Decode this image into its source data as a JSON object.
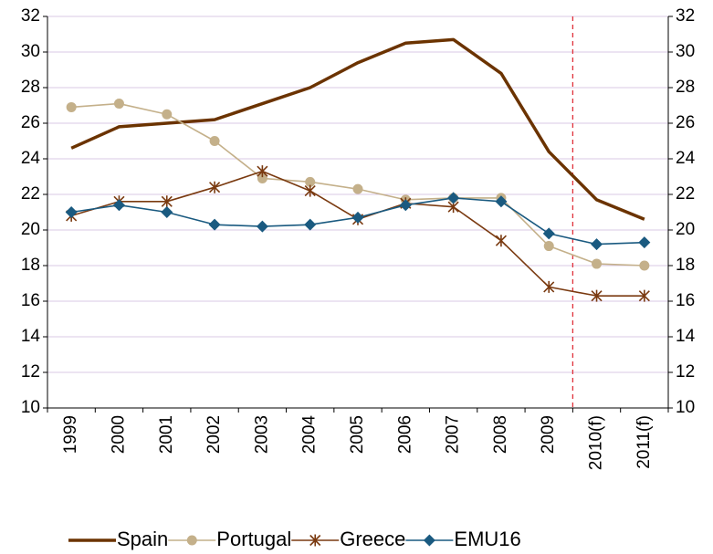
{
  "chart_data": {
    "type": "line",
    "categories": [
      "1999",
      "2000",
      "2001",
      "2002",
      "2003",
      "2004",
      "2005",
      "2006",
      "2007",
      "2008",
      "2009",
      "2010(f)",
      "2011(f)"
    ],
    "series": [
      {
        "name": "Spain",
        "color": "#6b3300",
        "marker": "none",
        "values": [
          24.6,
          25.8,
          26.0,
          26.2,
          27.1,
          28.0,
          29.4,
          30.5,
          30.7,
          28.8,
          24.4,
          21.7,
          20.6
        ]
      },
      {
        "name": "Portugal",
        "color": "#c4b08a",
        "marker": "circle",
        "values": [
          26.9,
          27.1,
          26.5,
          25.0,
          22.9,
          22.7,
          22.3,
          21.7,
          21.8,
          21.8,
          19.1,
          18.1,
          18.0
        ]
      },
      {
        "name": "Greece",
        "color": "#7a3a10",
        "marker": "star",
        "values": [
          20.8,
          21.6,
          21.6,
          22.4,
          23.3,
          22.2,
          20.6,
          21.5,
          21.3,
          19.4,
          16.8,
          16.3,
          16.3
        ]
      },
      {
        "name": "EMU16",
        "color": "#1a5a80",
        "marker": "diamond",
        "values": [
          21.0,
          21.4,
          21.0,
          20.3,
          20.2,
          20.3,
          20.7,
          21.4,
          21.8,
          21.6,
          19.8,
          19.2,
          19.3
        ]
      }
    ],
    "ylim": [
      10,
      32
    ],
    "yticks": [
      10,
      12,
      14,
      16,
      18,
      20,
      22,
      24,
      26,
      28,
      30,
      32
    ],
    "y2lim": [
      10,
      32
    ],
    "y2ticks": [
      10,
      12,
      14,
      16,
      18,
      20,
      22,
      24,
      26,
      28,
      30,
      32
    ],
    "grid": true
  }
}
